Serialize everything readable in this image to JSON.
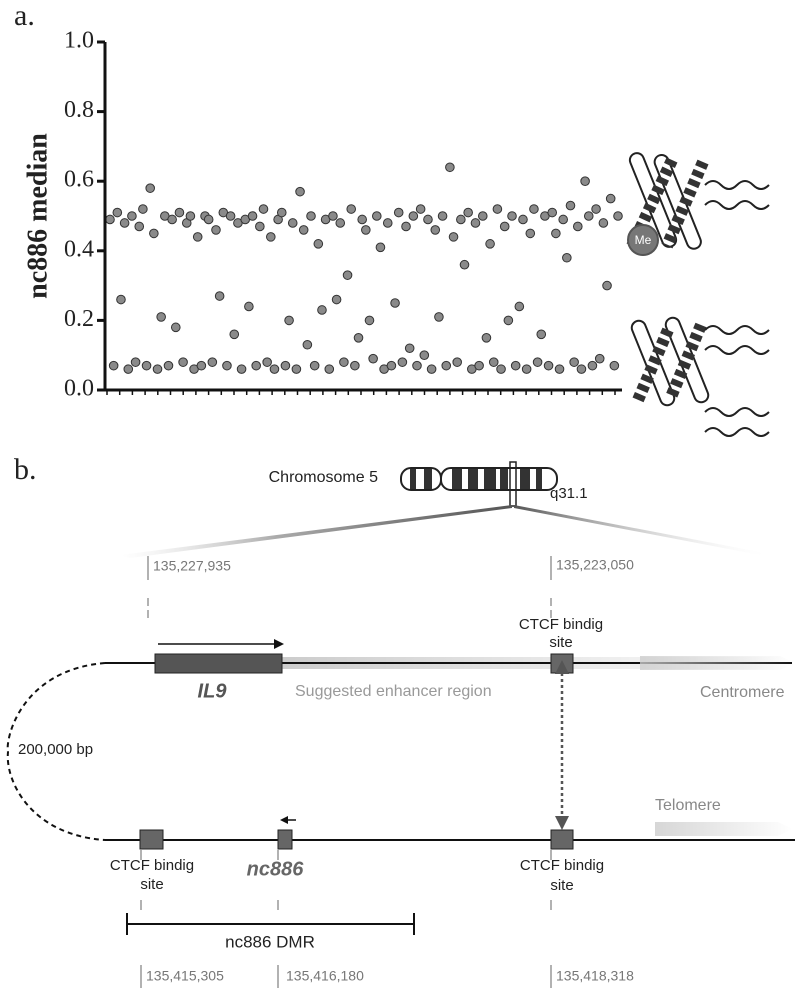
{
  "chart_data": {
    "type": "scatter",
    "panel": "a.",
    "y_label": "nc886 median",
    "color": "#8a8a8a",
    "ylim": [
      0,
      1
    ],
    "yticks": [
      {
        "value": 0,
        "label": "0.0"
      },
      0.2,
      0.4,
      0.6,
      0.8,
      {
        "value": 1,
        "label": "1.0"
      }
    ],
    "annotation": "Me",
    "values": [
      0.49,
      0.07,
      0.51,
      0.26,
      0.48,
      0.06,
      0.5,
      0.08,
      0.47,
      0.52,
      0.07,
      0.58,
      0.45,
      0.06,
      0.21,
      0.5,
      0.07,
      0.49,
      0.18,
      0.51,
      0.08,
      0.48,
      0.5,
      0.06,
      0.44,
      0.07,
      0.5,
      0.49,
      0.08,
      0.46,
      0.27,
      0.51,
      0.07,
      0.5,
      0.16,
      0.48,
      0.06,
      0.49,
      0.24,
      0.5,
      0.07,
      0.47,
      0.52,
      0.08,
      0.44,
      0.06,
      0.49,
      0.51,
      0.07,
      0.2,
      0.48,
      0.06,
      0.57,
      0.46,
      0.13,
      0.5,
      0.07,
      0.42,
      0.23,
      0.49,
      0.06,
      0.5,
      0.26,
      0.48,
      0.08,
      0.33,
      0.52,
      0.07,
      0.15,
      0.49,
      0.46,
      0.2,
      0.09,
      0.5,
      0.41,
      0.06,
      0.48,
      0.07,
      0.25,
      0.51,
      0.08,
      0.47,
      0.12,
      0.5,
      0.07,
      0.52,
      0.1,
      0.49,
      0.06,
      0.46,
      0.21,
      0.5,
      0.07,
      0.64,
      0.44,
      0.08,
      0.49,
      0.36,
      0.51,
      0.06,
      0.48,
      0.07,
      0.5,
      0.15,
      0.42,
      0.08,
      0.52,
      0.06,
      0.47,
      0.2,
      0.5,
      0.07,
      0.24,
      0.49,
      0.06,
      0.45,
      0.52,
      0.08,
      0.16,
      0.5,
      0.07,
      0.51,
      0.45,
      0.06,
      0.49,
      0.38,
      0.53,
      0.08,
      0.47,
      0.06,
      0.6,
      0.5,
      0.07,
      0.52,
      0.09,
      0.48,
      0.3,
      0.55,
      0.07,
      0.5
    ]
  },
  "diagram": {
    "panel": "b.",
    "chromosome": "Chromosome 5",
    "band": "q31.1",
    "coord_top_left": "135,227,935",
    "coord_top_right": "135,223,050",
    "ctcf_top": [
      "CTCF bindig",
      "site"
    ],
    "gene": "IL9",
    "enhancer": "Suggested enhancer region",
    "centromere": "Centromere",
    "distance": "200,000 bp",
    "telomere": "Telomere",
    "ctcf_bottom_left": [
      "CTCF bindig",
      "site"
    ],
    "ncrna": "nc886",
    "ctcf_bottom_right": [
      "CTCF bindig",
      "site"
    ],
    "dmr": "nc886 DMR",
    "coord_bottom_1": "135,415,305",
    "coord_bottom_2": "135,416,180",
    "coord_bottom_3": "135,418,318"
  }
}
